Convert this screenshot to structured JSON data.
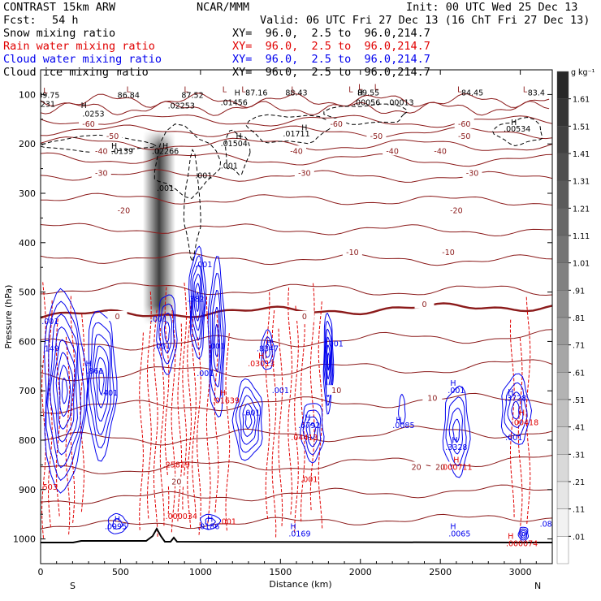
{
  "header": {
    "model": "CONTRAST 15km ARW",
    "center": "NCAR/MMM",
    "init": "Init: 00 UTC Wed 25 Dec 13",
    "fcst_label": "Fcst:",
    "fcst_value": "54 h",
    "valid": "Valid: 06 UTC Fri 27 Dec 13 (16 ChT Fri 27 Dec 13)"
  },
  "fields": [
    {
      "name": "Snow mixing ratio",
      "xy": "XY=  96.0,  2.5 to  96.0,214.7",
      "color": "#000000"
    },
    {
      "name": "Rain water mixing ratio",
      "xy": "XY=  96.0,  2.5 to  96.0,214.7",
      "color": "#e00000"
    },
    {
      "name": "Cloud water mixing ratio",
      "xy": "XY=  96.0,  2.5 to  96.0,214.7",
      "color": "#0000ee"
    },
    {
      "name": "Cloud ice mixing ratio",
      "xy": "XY=  96.0,  2.5 to  96.0,214.7",
      "color": "#000000"
    }
  ],
  "colorbar": {
    "unit": "g kg⁻¹",
    "labels": [
      "1.61",
      "1.51",
      "1.41",
      "1.31",
      "1.21",
      "1.11",
      "1.01",
      ".91",
      ".81",
      ".71",
      ".61",
      ".51",
      ".41",
      ".31",
      ".21",
      ".11",
      ".01"
    ]
  },
  "chart_data": {
    "type": "cross-section contour",
    "title": "CONTRAST 15km ARW vertical cross section",
    "xlabel": "Distance (km)",
    "ylabel": "Pressure (hPa)",
    "xlim": [
      0,
      3200
    ],
    "ylim": [
      1050,
      50
    ],
    "x_ticks": [
      0,
      500,
      1000,
      1500,
      2000,
      2500,
      3000
    ],
    "y_ticks": [
      100,
      200,
      300,
      400,
      500,
      600,
      700,
      800,
      900,
      1000
    ],
    "x_end_labels": {
      "left": "S",
      "right": "N"
    },
    "temperature_labels": [
      {
        "x": 300,
        "p": 160,
        "t": "-60"
      },
      {
        "x": 1850,
        "p": 160,
        "t": "-60"
      },
      {
        "x": 2650,
        "p": 160,
        "t": "-60"
      },
      {
        "x": 450,
        "p": 185,
        "t": "-50"
      },
      {
        "x": 2100,
        "p": 185,
        "t": "-50"
      },
      {
        "x": 2650,
        "p": 185,
        "t": "-50"
      },
      {
        "x": 380,
        "p": 215,
        "t": "-40"
      },
      {
        "x": 1600,
        "p": 215,
        "t": "-40"
      },
      {
        "x": 2200,
        "p": 215,
        "t": "-40"
      },
      {
        "x": 2500,
        "p": 215,
        "t": "-40"
      },
      {
        "x": 380,
        "p": 260,
        "t": "-30"
      },
      {
        "x": 1650,
        "p": 260,
        "t": "-30"
      },
      {
        "x": 2700,
        "p": 260,
        "t": "-30"
      },
      {
        "x": 520,
        "p": 335,
        "t": "-20"
      },
      {
        "x": 2600,
        "p": 335,
        "t": "-20"
      },
      {
        "x": 1950,
        "p": 420,
        "t": "-10"
      },
      {
        "x": 2550,
        "p": 420,
        "t": "-10"
      },
      {
        "x": 480,
        "p": 550,
        "t": "0"
      },
      {
        "x": 1650,
        "p": 550,
        "t": "0"
      },
      {
        "x": 2400,
        "p": 525,
        "t": "0"
      },
      {
        "x": 1850,
        "p": 700,
        "t": "10"
      },
      {
        "x": 2450,
        "p": 715,
        "t": "10"
      },
      {
        "x": 2350,
        "p": 855,
        "t": "20"
      },
      {
        "x": 2500,
        "p": 855,
        "t": "20"
      },
      {
        "x": 850,
        "p": 885,
        "t": "20"
      }
    ],
    "point_labels": [
      {
        "x": 50,
        "p": 102,
        "t": "89.75",
        "c": "#000000"
      },
      {
        "x": 30,
        "p": 120,
        "t": "2231",
        "c": "#000000"
      },
      {
        "x": 550,
        "p": 102,
        "t": "86.84",
        "c": "#000000"
      },
      {
        "x": 950,
        "p": 102,
        "t": "87.52",
        "c": "#000000"
      },
      {
        "x": 1350,
        "p": 97,
        "t": "87.16",
        "c": "#000000"
      },
      {
        "x": 1600,
        "p": 97,
        "t": "88.43",
        "c": "#000000"
      },
      {
        "x": 2050,
        "p": 97,
        "t": "89.55",
        "c": "#000000"
      },
      {
        "x": 2700,
        "p": 97,
        "t": "84.45",
        "c": "#000000"
      },
      {
        "x": 3100,
        "p": 97,
        "t": "83.4",
        "c": "#000000"
      },
      {
        "x": 330,
        "p": 140,
        "t": ".0253",
        "c": "#000000"
      },
      {
        "x": 880,
        "p": 123,
        "t": ".02253",
        "c": "#000000"
      },
      {
        "x": 1210,
        "p": 117,
        "t": ".01456",
        "c": "#000000"
      },
      {
        "x": 2040,
        "p": 117,
        "t": ".00056",
        "c": "#000000"
      },
      {
        "x": 2250,
        "p": 117,
        "t": ".00013",
        "c": "#000000"
      },
      {
        "x": 1600,
        "p": 180,
        "t": ".01711",
        "c": "#000000"
      },
      {
        "x": 2980,
        "p": 170,
        "t": ".00534",
        "c": "#000000"
      },
      {
        "x": 510,
        "p": 215,
        "t": ".0139",
        "c": "#000000"
      },
      {
        "x": 780,
        "p": 215,
        "t": ".02266",
        "c": "#000000"
      },
      {
        "x": 1210,
        "p": 200,
        "t": ".01504",
        "c": "#000000"
      },
      {
        "x": 1180,
        "p": 245,
        "t": ".001",
        "c": "#000000"
      },
      {
        "x": 780,
        "p": 290,
        "t": ".001",
        "c": "#000000"
      },
      {
        "x": 1020,
        "p": 265,
        "t": ".001",
        "c": "#000000"
      },
      {
        "x": 1020,
        "p": 445,
        "t": ".001",
        "c": "#0000ee"
      },
      {
        "x": 970,
        "p": 515,
        "t": ".382",
        "c": "#0000ee"
      },
      {
        "x": 740,
        "p": 555,
        "t": ".001",
        "c": "#0000ee"
      },
      {
        "x": 60,
        "p": 560,
        "t": ".001",
        "c": "#0000ee"
      },
      {
        "x": 70,
        "p": 615,
        "t": "149",
        "c": "#0000ee"
      },
      {
        "x": 340,
        "p": 660,
        "t": ".861",
        "c": "#0000ee"
      },
      {
        "x": 430,
        "p": 705,
        "t": ".401",
        "c": "#0000ee"
      },
      {
        "x": 760,
        "p": 610,
        "t": ".001",
        "c": "#0000ee"
      },
      {
        "x": 1100,
        "p": 610,
        "t": ".001",
        "c": "#0000ee"
      },
      {
        "x": 1030,
        "p": 665,
        "t": ".001",
        "c": "#0000ee"
      },
      {
        "x": 1420,
        "p": 615,
        "t": ".8347",
        "c": "#0000ee"
      },
      {
        "x": 1840,
        "p": 605,
        "t": ".001",
        "c": "#0000ee"
      },
      {
        "x": 1500,
        "p": 700,
        "t": ".001",
        "c": "#0000ee"
      },
      {
        "x": 1320,
        "p": 745,
        "t": ".001",
        "c": "#0000ee"
      },
      {
        "x": 1680,
        "p": 770,
        "t": ".6792",
        "c": "#0000ee"
      },
      {
        "x": 2270,
        "p": 770,
        "t": ".0085",
        "c": "#0000ee"
      },
      {
        "x": 2600,
        "p": 700,
        "t": ".001",
        "c": "#0000ee"
      },
      {
        "x": 2970,
        "p": 715,
        "t": ".3728",
        "c": "#0000ee"
      },
      {
        "x": 2600,
        "p": 815,
        "t": ".3328",
        "c": "#0000ee"
      },
      {
        "x": 2960,
        "p": 795,
        "t": ".001",
        "c": "#0000ee"
      },
      {
        "x": 470,
        "p": 975,
        "t": ".0995",
        "c": "#0000ee"
      },
      {
        "x": 1050,
        "p": 975,
        "t": ".0186",
        "c": "#0000ee"
      },
      {
        "x": 1620,
        "p": 990,
        "t": ".0169",
        "c": "#0000ee"
      },
      {
        "x": 2620,
        "p": 990,
        "t": ".0065",
        "c": "#0000ee"
      },
      {
        "x": 3160,
        "p": 970,
        "t": ".08",
        "c": "#0000ee"
      },
      {
        "x": 1380,
        "p": 645,
        "t": ".03013",
        "c": "#e00000"
      },
      {
        "x": 1160,
        "p": 720,
        "t": ".01639",
        "c": "#e00000"
      },
      {
        "x": 850,
        "p": 850,
        "t": ".25819",
        "c": "#e00000"
      },
      {
        "x": 1650,
        "p": 795,
        "t": ".04413",
        "c": "#e00000"
      },
      {
        "x": 1680,
        "p": 880,
        "t": ".001",
        "c": "#e00000"
      },
      {
        "x": 2600,
        "p": 855,
        "t": ".000711",
        "c": "#e00000"
      },
      {
        "x": 3030,
        "p": 765,
        "t": ".00418",
        "c": "#e00000"
      },
      {
        "x": 880,
        "p": 955,
        "t": ".000034",
        "c": "#e00000"
      },
      {
        "x": 3010,
        "p": 1010,
        "t": ".000074",
        "c": "#e00000"
      },
      {
        "x": 60,
        "p": 895,
        "t": "503",
        "c": "#e00000"
      },
      {
        "x": 1170,
        "p": 965,
        "t": ".001",
        "c": "#e00000"
      }
    ],
    "h_markers": [
      {
        "x": 270,
        "p": 122,
        "c": "#000000"
      },
      {
        "x": 1230,
        "p": 97,
        "c": "#000000"
      },
      {
        "x": 2000,
        "p": 97,
        "c": "#000000"
      },
      {
        "x": 2960,
        "p": 157,
        "c": "#000000"
      },
      {
        "x": 1650,
        "p": 168,
        "c": "#000000"
      },
      {
        "x": 460,
        "p": 205,
        "c": "#000000"
      },
      {
        "x": 780,
        "p": 205,
        "c": "#000000"
      },
      {
        "x": 1240,
        "p": 185,
        "c": "#000000"
      },
      {
        "x": 40,
        "p": 600,
        "c": "#0000ee"
      },
      {
        "x": 300,
        "p": 645,
        "c": "#0000ee"
      },
      {
        "x": 1430,
        "p": 603,
        "c": "#0000ee"
      },
      {
        "x": 1670,
        "p": 755,
        "c": "#0000ee"
      },
      {
        "x": 2240,
        "p": 760,
        "c": "#0000ee"
      },
      {
        "x": 2580,
        "p": 685,
        "c": "#0000ee"
      },
      {
        "x": 2940,
        "p": 703,
        "c": "#0000ee"
      },
      {
        "x": 2590,
        "p": 800,
        "c": "#0000ee"
      },
      {
        "x": 480,
        "p": 960,
        "c": "#0000ee"
      },
      {
        "x": 1060,
        "p": 960,
        "c": "#0000ee"
      },
      {
        "x": 1580,
        "p": 975,
        "c": "#0000ee"
      },
      {
        "x": 2580,
        "p": 975,
        "c": "#0000ee"
      },
      {
        "x": 1380,
        "p": 630,
        "c": "#e00000"
      },
      {
        "x": 1140,
        "p": 705,
        "c": "#e00000"
      },
      {
        "x": 2600,
        "p": 840,
        "c": "#e00000"
      },
      {
        "x": 3010,
        "p": 745,
        "c": "#e00000"
      },
      {
        "x": 2940,
        "p": 995,
        "c": "#e00000"
      }
    ],
    "l_markers": [
      {
        "x": 30,
        "p": 93
      },
      {
        "x": 550,
        "p": 90
      },
      {
        "x": 910,
        "p": 90
      },
      {
        "x": 1150,
        "p": 90
      },
      {
        "x": 1270,
        "p": 90
      },
      {
        "x": 1580,
        "p": 90
      },
      {
        "x": 1940,
        "p": 90
      },
      {
        "x": 2000,
        "p": 85
      },
      {
        "x": 2100,
        "p": 85
      },
      {
        "x": 2620,
        "p": 90
      },
      {
        "x": 3030,
        "p": 90
      }
    ]
  }
}
